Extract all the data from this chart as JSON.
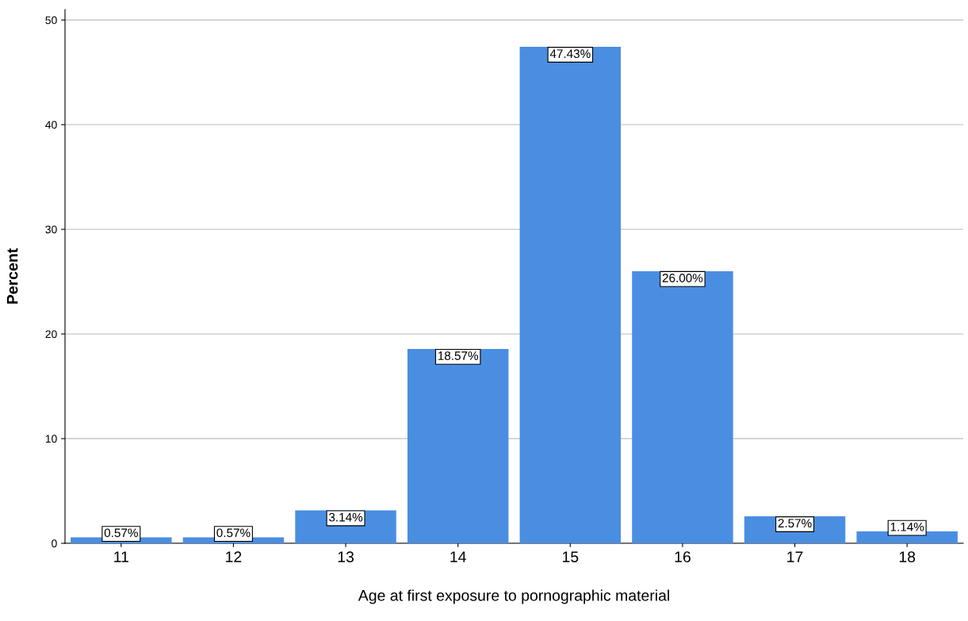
{
  "chart_data": {
    "type": "bar",
    "xlabel": "Age at first exposure to pornographic material",
    "ylabel": "Percent",
    "categories": [
      "11",
      "12",
      "13",
      "14",
      "15",
      "16",
      "17",
      "18"
    ],
    "values": [
      0.57,
      0.57,
      3.14,
      18.57,
      47.43,
      26.0,
      2.57,
      1.14
    ],
    "value_labels": [
      "0.57%",
      "0.57%",
      "3.14%",
      "18.57%",
      "47.43%",
      "26.00%",
      "2.57%",
      "1.14%"
    ],
    "color": "#4a8ee2",
    "ylim": [
      0,
      51
    ],
    "yticks": [
      0,
      10,
      20,
      30,
      40,
      50
    ],
    "grid": "y"
  }
}
